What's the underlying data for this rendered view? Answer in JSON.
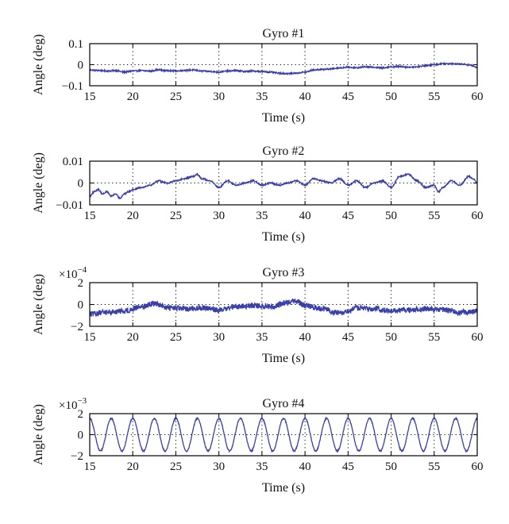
{
  "figure": {
    "line_color": "#3a3fa8"
  },
  "chart_data": [
    {
      "type": "line",
      "title": "Gyro #1",
      "xlabel": "Time (s)",
      "ylabel": "Angle (deg)",
      "xlim": [
        15,
        60
      ],
      "ylim": [
        -0.1,
        0.1
      ],
      "xticks": [
        15,
        20,
        25,
        30,
        35,
        40,
        45,
        50,
        55,
        60
      ],
      "yticks": [
        {
          "v": 0.1,
          "label": "0.1"
        },
        {
          "v": 0,
          "label": "0"
        },
        {
          "v": -0.1,
          "label": "−0.1"
        }
      ],
      "multiplier": null,
      "grid": true,
      "series": [
        {
          "x": [
            15,
            16,
            17,
            18,
            19,
            20,
            21,
            22,
            23,
            24,
            25,
            26,
            27,
            28,
            29,
            30,
            31,
            32,
            33,
            34,
            35,
            36,
            37,
            38,
            39,
            40,
            41,
            42,
            43,
            44,
            45,
            46,
            47,
            48,
            49,
            50,
            51,
            52,
            53,
            54,
            55,
            56,
            57,
            58,
            59,
            60
          ],
          "y": [
            -0.025,
            -0.027,
            -0.03,
            -0.028,
            -0.035,
            -0.03,
            -0.028,
            -0.03,
            -0.025,
            -0.028,
            -0.03,
            -0.027,
            -0.025,
            -0.03,
            -0.032,
            -0.035,
            -0.03,
            -0.028,
            -0.032,
            -0.03,
            -0.033,
            -0.035,
            -0.04,
            -0.042,
            -0.04,
            -0.035,
            -0.025,
            -0.022,
            -0.02,
            -0.015,
            -0.012,
            -0.015,
            -0.01,
            -0.012,
            -0.015,
            -0.01,
            -0.008,
            -0.012,
            -0.01,
            -0.005,
            0,
            0.005,
            0.005,
            0.003,
            0,
            -0.012
          ],
          "noise": 0.003
        }
      ]
    },
    {
      "type": "line",
      "title": "Gyro #2",
      "xlabel": "Time (s)",
      "ylabel": "Angle (deg)",
      "xlim": [
        15,
        60
      ],
      "ylim": [
        -0.01,
        0.01
      ],
      "xticks": [
        15,
        20,
        25,
        30,
        35,
        40,
        45,
        50,
        55,
        60
      ],
      "yticks": [
        {
          "v": 0.01,
          "label": "0.01"
        },
        {
          "v": 0,
          "label": "0"
        },
        {
          "v": -0.01,
          "label": "−0.01"
        }
      ],
      "multiplier": null,
      "grid": true,
      "series": [
        {
          "x": [
            15,
            15.5,
            16,
            16.5,
            17,
            17.5,
            18,
            18.5,
            19,
            19.5,
            20,
            21,
            22,
            23,
            24,
            25,
            26,
            27,
            27.5,
            28,
            29,
            30,
            31,
            32,
            33,
            34,
            35,
            36,
            37,
            38,
            39,
            40,
            41,
            42,
            43,
            44,
            45,
            46,
            47,
            48,
            49,
            50,
            51,
            52,
            53,
            54,
            55,
            55.5,
            56,
            57,
            58,
            59,
            59.5,
            60
          ],
          "y": [
            -0.006,
            -0.004,
            -0.003,
            -0.005,
            -0.004,
            -0.006,
            -0.005,
            -0.007,
            -0.005,
            -0.004,
            -0.003,
            -0.002,
            -0.001,
            0.001,
            0,
            0.001,
            0.002,
            0.003,
            0.004,
            0.002,
            0.001,
            -0.002,
            0.001,
            -0.001,
            0,
            0.001,
            -0.001,
            0,
            -0.001,
            0,
            0.001,
            -0.001,
            0.002,
            0.001,
            0,
            0.002,
            -0.001,
            0.001,
            -0.002,
            0,
            0.001,
            -0.002,
            0.003,
            0.004,
            0.001,
            -0.002,
            -0.001,
            -0.004,
            -0.002,
            0.001,
            -0.001,
            0.003,
            0.002,
            0
          ],
          "noise": 0.0003
        }
      ]
    },
    {
      "type": "line",
      "title": "Gyro #3",
      "xlabel": "Time (s)",
      "ylabel": "Angle (deg)",
      "xlim": [
        15,
        60
      ],
      "ylim": [
        -2,
        2
      ],
      "xticks": [
        15,
        20,
        25,
        30,
        35,
        40,
        45,
        50,
        55,
        60
      ],
      "yticks": [
        {
          "v": 2,
          "label": "2"
        },
        {
          "v": 0,
          "label": "0"
        },
        {
          "v": -2,
          "label": "−2"
        }
      ],
      "multiplier": {
        "base": "×10",
        "exp": "−4"
      },
      "grid": true,
      "series": [
        {
          "x": [
            15,
            17,
            19,
            21,
            22.5,
            24,
            26,
            28,
            30,
            32,
            34,
            36,
            38,
            39,
            40,
            42,
            44,
            45,
            46,
            48,
            50,
            52,
            54,
            56,
            58,
            60
          ],
          "y": [
            -0.9,
            -0.7,
            -0.6,
            -0.2,
            0.1,
            -0.3,
            -0.4,
            -0.3,
            -0.5,
            -0.2,
            -0.1,
            -0.2,
            0.2,
            0.3,
            -0.1,
            -0.4,
            -0.8,
            -0.7,
            -0.3,
            -0.4,
            -0.6,
            -0.5,
            -0.4,
            -0.5,
            -0.7,
            -0.6
          ],
          "noise": 0.25
        }
      ]
    },
    {
      "type": "line",
      "title": "Gyro #4",
      "xlabel": "Time (s)",
      "ylabel": "Angle (deg)",
      "xlim": [
        15,
        60
      ],
      "ylim": [
        -2,
        2
      ],
      "xticks": [
        15,
        20,
        25,
        30,
        35,
        40,
        45,
        50,
        55,
        60
      ],
      "yticks": [
        {
          "v": 2,
          "label": "2"
        },
        {
          "v": 0,
          "label": "0"
        },
        {
          "v": -2,
          "label": "−2"
        }
      ],
      "multiplier": {
        "base": "×10",
        "exp": "−3"
      },
      "grid": true,
      "series": [
        {
          "wave": {
            "amplitude": 1.55,
            "period": 2.5,
            "start": 15,
            "end": 60,
            "phase_deg": 90
          },
          "noise": 0.06
        }
      ]
    }
  ]
}
